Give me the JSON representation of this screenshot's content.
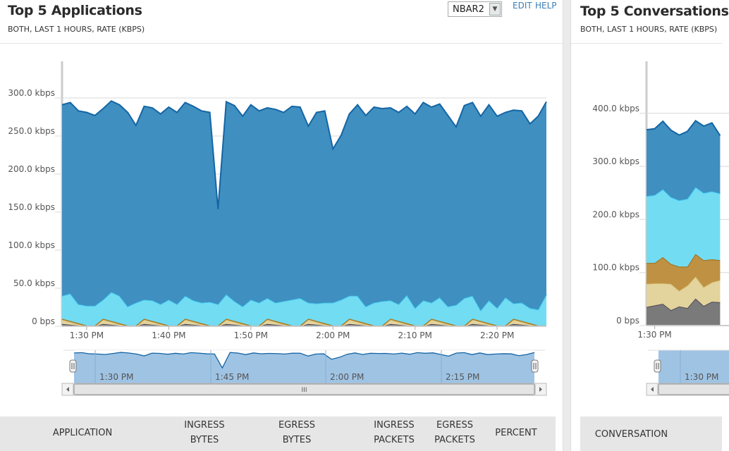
{
  "left_panel": {
    "title": "Top 5 Applications",
    "subtitle": "BOTH, LAST 1 HOURS, RATE (KBPS)",
    "select_value": "NBAR2",
    "edit_label": "EDIT",
    "help_label": "HELP",
    "navigator_labels": [
      "1:30 PM",
      "1:45 PM",
      "2:00 PM",
      "2:15 PM"
    ],
    "scrollbar_grip": "III",
    "table_headers": [
      "APPLICATION",
      [
        "INGRESS",
        "BYTES"
      ],
      [
        "EGRESS",
        "BYTES"
      ],
      [
        "INGRESS",
        "PACKETS"
      ],
      [
        "EGRESS",
        "PACKETS"
      ],
      "PERCENT"
    ]
  },
  "right_panel": {
    "title": "Top 5 Conversations",
    "subtitle": "BOTH, LAST 1 HOURS, RATE (KBPS)",
    "navigator_labels": [
      "1:30 PM"
    ],
    "table_headers": [
      "CONVERSATION"
    ]
  },
  "colors": {
    "blue": "#3f8fc0",
    "blue_line": "#1565a5",
    "cyan": "#72dcf3",
    "cyan_line": "#3ec3ea",
    "brown": "#bf9142",
    "brown_line": "#a46e12",
    "tan": "#e3d39c",
    "tan_line": "#c9a95a",
    "gray": "#7a7a7a",
    "gray_line": "#4f4a5a",
    "navigator": "#9fc3e3"
  },
  "chart_data": [
    {
      "type": "area",
      "stacked": true,
      "yticks": [
        "0 bps",
        "50.0 kbps",
        "100.0 kbps",
        "150.0 kbps",
        "200.0 kbps",
        "250.0 kbps",
        "300.0 kbps"
      ],
      "ytick_values": [
        0,
        50,
        100,
        150,
        200,
        250,
        300
      ],
      "xticks": [
        "1:30 PM",
        "1:40 PM",
        "1:50 PM",
        "2:00 PM",
        "2:10 PM",
        "2:20 PM"
      ],
      "xtick_index": [
        3,
        13,
        23,
        33,
        43,
        53
      ],
      "ylim": [
        0,
        345
      ],
      "x": [
        "1:27 PM",
        "1:28 PM",
        "1:29 PM",
        "1:30 PM",
        "1:31 PM",
        "1:32 PM",
        "1:33 PM",
        "1:34 PM",
        "1:35 PM",
        "1:36 PM",
        "1:37 PM",
        "1:38 PM",
        "1:39 PM",
        "1:40 PM",
        "1:41 PM",
        "1:42 PM",
        "1:43 PM",
        "1:44 PM",
        "1:45 PM",
        "1:46 PM",
        "1:47 PM",
        "1:48 PM",
        "1:49 PM",
        "1:50 PM",
        "1:51 PM",
        "1:52 PM",
        "1:53 PM",
        "1:54 PM",
        "1:55 PM",
        "1:56 PM",
        "1:57 PM",
        "1:58 PM",
        "1:59 PM",
        "2:00 PM",
        "2:01 PM",
        "2:02 PM",
        "2:03 PM",
        "2:04 PM",
        "2:05 PM",
        "2:06 PM",
        "2:07 PM",
        "2:08 PM",
        "2:09 PM",
        "2:10 PM",
        "2:11 PM",
        "2:12 PM",
        "2:13 PM",
        "2:14 PM",
        "2:15 PM",
        "2:16 PM",
        "2:17 PM",
        "2:18 PM",
        "2:19 PM",
        "2:20 PM",
        "2:21 PM",
        "2:22 PM",
        "2:23 PM",
        "2:24 PM",
        "2:25 PM",
        "2:26 PM"
      ],
      "series": [
        {
          "color": "gray",
          "values": [
            3,
            2,
            1,
            0,
            0,
            3,
            2,
            1,
            0,
            0,
            3,
            2,
            1,
            0,
            0,
            3,
            2,
            1,
            0,
            0,
            3,
            2,
            1,
            0,
            0,
            3,
            2,
            1,
            0,
            0,
            3,
            2,
            1,
            0,
            0,
            3,
            2,
            1,
            0,
            0,
            3,
            2,
            1,
            0,
            0,
            3,
            2,
            1,
            0,
            0,
            3,
            2,
            1,
            0,
            0,
            3,
            2,
            1,
            0,
            0
          ]
        },
        {
          "color": "tan",
          "values": [
            6,
            4,
            2,
            0,
            0,
            6,
            4,
            2,
            0,
            0,
            6,
            4,
            2,
            0,
            0,
            6,
            4,
            2,
            0,
            0,
            6,
            4,
            2,
            0,
            0,
            6,
            4,
            2,
            0,
            0,
            6,
            4,
            2,
            0,
            0,
            6,
            4,
            2,
            0,
            0,
            6,
            4,
            2,
            0,
            0,
            6,
            4,
            2,
            0,
            0,
            6,
            4,
            2,
            0,
            0,
            6,
            4,
            2,
            0,
            0
          ]
        },
        {
          "color": "brown",
          "values": [
            1,
            1,
            1,
            1,
            1,
            1,
            1,
            1,
            1,
            1,
            1,
            1,
            1,
            1,
            1,
            1,
            1,
            1,
            1,
            1,
            1,
            1,
            1,
            1,
            1,
            1,
            1,
            1,
            1,
            1,
            1,
            1,
            1,
            1,
            1,
            1,
            1,
            1,
            1,
            1,
            1,
            1,
            1,
            1,
            1,
            1,
            1,
            1,
            1,
            1,
            1,
            1,
            1,
            1,
            1,
            1,
            1,
            1,
            1,
            1
          ]
        },
        {
          "color": "cyan",
          "values": [
            30,
            36,
            25,
            26,
            26,
            25,
            38,
            36,
            25,
            30,
            25,
            27,
            25,
            34,
            28,
            30,
            27,
            27,
            31,
            28,
            32,
            26,
            22,
            34,
            30,
            27,
            24,
            29,
            34,
            36,
            21,
            23,
            27,
            30,
            34,
            30,
            33,
            22,
            30,
            32,
            24,
            22,
            37,
            23,
            33,
            21,
            31,
            22,
            27,
            36,
            30,
            14,
            30,
            23,
            37,
            20,
            24,
            20,
            21,
            41
          ]
        },
        {
          "color": "blue",
          "values": [
            251,
            251,
            254,
            254,
            250,
            251,
            251,
            251,
            255,
            233,
            254,
            253,
            250,
            253,
            252,
            254,
            255,
            252,
            249,
            125,
            253,
            257,
            250,
            256,
            252,
            250,
            254,
            248,
            254,
            251,
            232,
            251,
            252,
            202,
            216,
            239,
            251,
            251,
            257,
            253,
            253,
            252,
            248,
            255,
            260,
            257,
            254,
            251,
            234,
            253,
            254,
            255,
            257,
            252,
            243,
            254,
            252,
            242,
            254,
            253
          ]
        }
      ]
    },
    {
      "type": "area",
      "stacked": true,
      "yticks": [
        "0 bps",
        "100.0 kbps",
        "200.0 kbps",
        "300.0 kbps",
        "400.0 kbps"
      ],
      "ytick_values": [
        0,
        100,
        200,
        300,
        400
      ],
      "xticks": [
        "1:30 PM"
      ],
      "xtick_index": [
        1
      ],
      "ylim": [
        0,
        485
      ],
      "series": [
        {
          "color": "gray",
          "values": [
            35,
            38,
            41,
            29,
            36,
            33,
            51,
            37,
            45,
            44
          ]
        },
        {
          "color": "tan",
          "values": [
            44,
            42,
            39,
            50,
            30,
            43,
            42,
            36,
            37,
            42
          ]
        },
        {
          "color": "brown",
          "values": [
            39,
            38,
            49,
            37,
            45,
            35,
            42,
            50,
            43,
            37
          ]
        },
        {
          "color": "cyan",
          "values": [
            126,
            128,
            128,
            126,
            125,
            128,
            126,
            127,
            128,
            126
          ]
        },
        {
          "color": "blue",
          "values": [
            125,
            125,
            128,
            126,
            123,
            127,
            125,
            126,
            129,
            109
          ]
        }
      ]
    }
  ]
}
